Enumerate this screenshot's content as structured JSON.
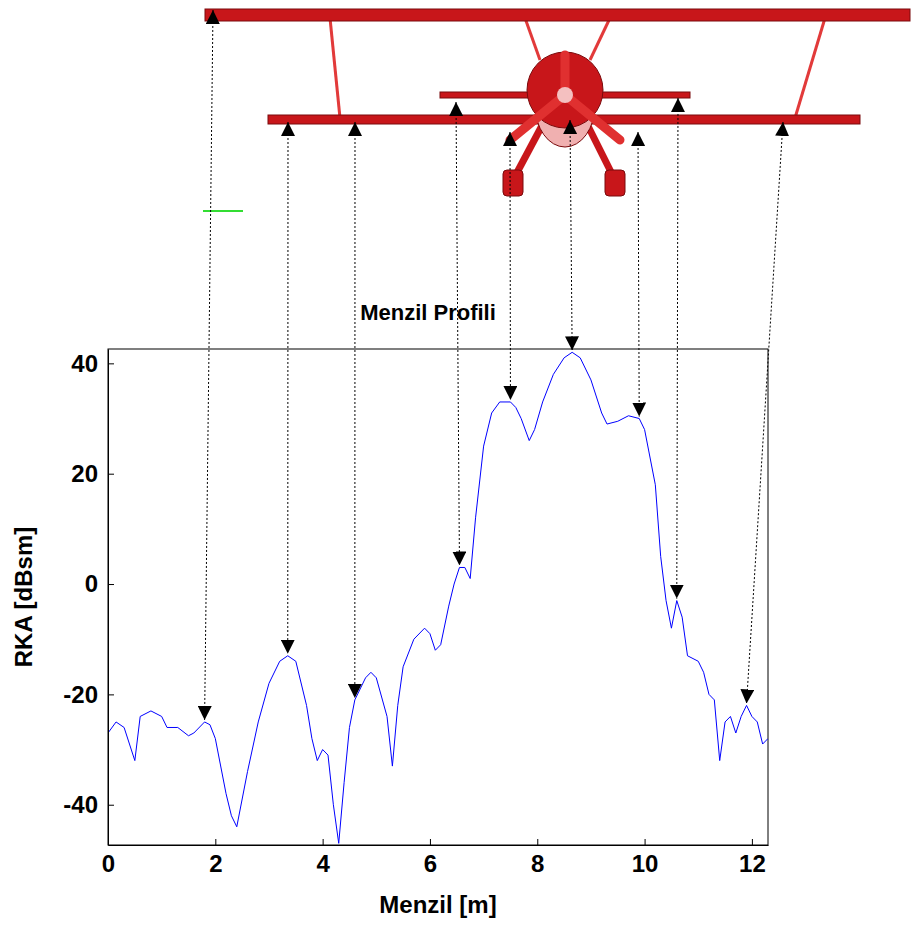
{
  "chart_data": {
    "type": "line",
    "title": "Menzil Profili",
    "x_label": "Menzil [m]",
    "y_label": "RKA [dBsm]",
    "x": [
      0,
      0.15,
      0.3,
      0.5,
      0.6,
      0.8,
      1.0,
      1.1,
      1.3,
      1.5,
      1.6,
      1.8,
      1.9,
      2.0,
      2.2,
      2.3,
      2.4,
      2.6,
      2.8,
      3.0,
      3.2,
      3.35,
      3.5,
      3.7,
      3.8,
      3.9,
      4.0,
      4.1,
      4.2,
      4.3,
      4.4,
      4.5,
      4.6,
      4.8,
      4.9,
      5.0,
      5.2,
      5.3,
      5.4,
      5.5,
      5.7,
      5.9,
      6.0,
      6.1,
      6.2,
      6.35,
      6.45,
      6.55,
      6.65,
      6.75,
      6.85,
      7.0,
      7.15,
      7.3,
      7.5,
      7.6,
      7.7,
      7.85,
      7.95,
      8.1,
      8.3,
      8.5,
      8.65,
      8.8,
      9.0,
      9.2,
      9.3,
      9.5,
      9.7,
      9.9,
      10.0,
      10.2,
      10.3,
      10.4,
      10.5,
      10.6,
      10.7,
      10.8,
      11.0,
      11.1,
      11.2,
      11.3,
      11.4,
      11.5,
      11.6,
      11.7,
      11.8,
      11.9,
      12.0,
      12.1,
      12.2,
      12.3
    ],
    "values": [
      -27,
      -25,
      -26,
      -32,
      -24,
      -23,
      -24,
      -26,
      -26,
      -27.5,
      -27,
      -25,
      -25.5,
      -28,
      -38,
      -42,
      -44,
      -34,
      -25,
      -18,
      -14,
      -13,
      -14,
      -22,
      -28,
      -32,
      -30,
      -31,
      -40,
      -47,
      -36,
      -26,
      -21,
      -17,
      -16,
      -17,
      -24,
      -33,
      -22,
      -15,
      -10,
      -8,
      -9,
      -12,
      -11,
      -4,
      0,
      3,
      3,
      1,
      12,
      25,
      31,
      33,
      33,
      32,
      30,
      26,
      28,
      33,
      38,
      41,
      42,
      41,
      37,
      31,
      29,
      29.5,
      30.5,
      30,
      28,
      18,
      5,
      -3,
      -8,
      -3,
      -6,
      -13,
      -14,
      -16,
      -20,
      -21,
      -32,
      -25,
      -24,
      -27,
      -24,
      -22,
      -24,
      -25,
      -29,
      -28
    ],
    "color": "#0000ff",
    "xlim": [
      0,
      12.3
    ],
    "ylim": [
      -47.3,
      42.6
    ],
    "xticks": [
      0,
      2,
      4,
      6,
      8,
      10,
      12
    ],
    "yticks": [
      -40,
      -20,
      0,
      20,
      40
    ],
    "peaks": [
      1.8,
      3.35,
      4.6,
      6.55,
      7.5,
      8.65,
      9.9,
      10.6,
      11.9
    ]
  }
}
